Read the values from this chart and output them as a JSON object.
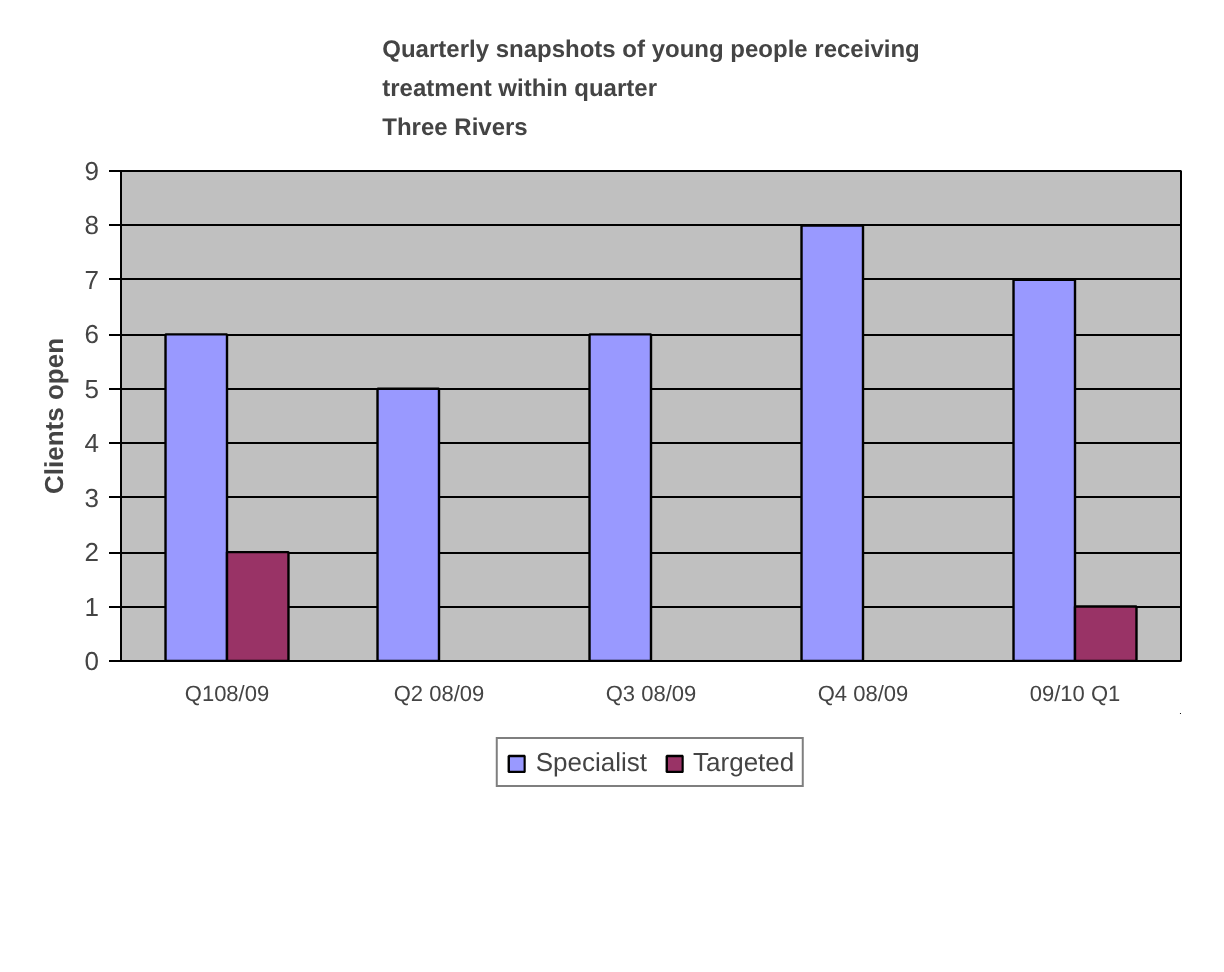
{
  "chart_data": {
    "type": "bar",
    "title": "Quarterly snapshots of young people receiving treatment within quarter",
    "subtitle": "Three Rivers",
    "ylabel": "Clients open",
    "categories": [
      "Q108/09",
      "Q2 08/09",
      "Q3 08/09",
      "Q4 08/09",
      "09/10 Q1"
    ],
    "series": [
      {
        "name": "Specialist",
        "color": "#9999ff",
        "values": [
          6,
          5,
          6,
          8,
          7
        ]
      },
      {
        "name": "Targeted",
        "color": "#993366",
        "values": [
          2,
          null,
          null,
          null,
          1
        ]
      }
    ],
    "ylim": [
      0,
      9
    ],
    "yticks": [
      0,
      1,
      2,
      3,
      4,
      5,
      6,
      7,
      8,
      9
    ],
    "grid": "y",
    "legend": "bottom"
  }
}
